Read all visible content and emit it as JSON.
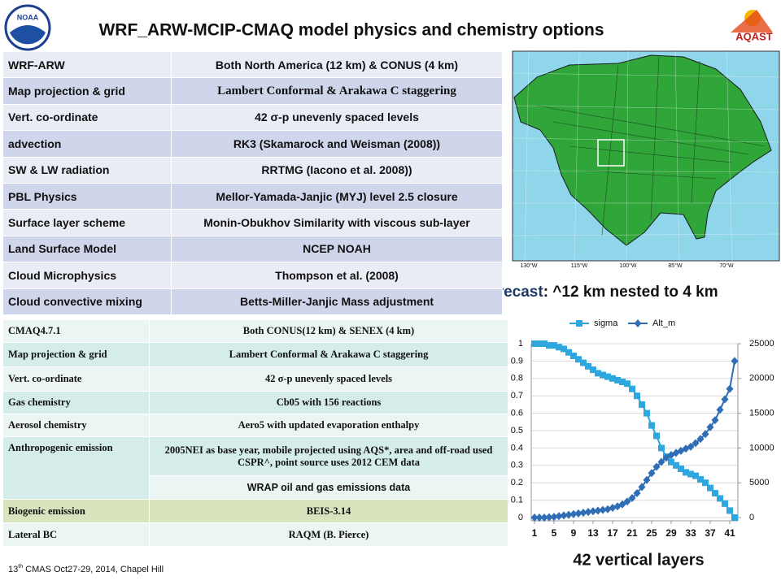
{
  "header": {
    "title": "WRF_ARW-MCIP-CMAQ model physics and chemistry options",
    "left_logo": "NOAA",
    "right_logo": "AQAST"
  },
  "wrf_table": {
    "header": [
      "WRF-ARW",
      "Both North America (12 km) & CONUS (4 km)"
    ],
    "rows": [
      [
        "Map projection & grid",
        "Lambert Conformal & Arakawa C staggering"
      ],
      [
        "Vert. co-ordinate",
        "42 σ-p unevenly spaced levels"
      ],
      [
        "advection",
        "RK3 (Skamarock and Weisman (2008))"
      ],
      [
        "SW & LW radiation",
        "RRTMG (Iacono et al. 2008))"
      ],
      [
        "PBL Physics",
        "Mellor-Yamada-Janjic (MYJ) level 2.5 closure"
      ],
      [
        "Surface layer scheme",
        "Monin-Obukhov Similarity with viscous sub-layer"
      ],
      [
        "Land Surface Model",
        "NCEP NOAH"
      ],
      [
        "Cloud Microphysics",
        "Thompson et al. (2008)"
      ],
      [
        "Cloud convective mixing",
        "Betts-Miller-Janjic Mass adjustment"
      ]
    ]
  },
  "cmaq_table": {
    "header": [
      "CMAQ4.7.1",
      "Both CONUS(12 km) & SENEX (4 km)"
    ],
    "rows": [
      [
        "Map projection & grid",
        "Lambert Conformal & Arakawa C staggering"
      ],
      [
        "Vert. co-ordinate",
        "42 σ-p unevenly spaced levels"
      ],
      [
        "Gas chemistry",
        "Cb05 with 156 reactions"
      ],
      [
        "Aerosol chemistry",
        "Aero5 with updated evaporation enthalpy"
      ],
      [
        "Anthropogenic emission",
        "2005NEI as base year, mobile projected using AQS*, area and off-road used CSPR^, point source uses 2012 CEM data",
        "WRAP oil and gas emissions data"
      ],
      [
        "Biogenic emission",
        "BEIS-3.14"
      ],
      [
        "Lateral BC",
        "RAQM (B. Pierce)"
      ]
    ]
  },
  "map": {
    "lon_labels": [
      "130°W",
      "115°W",
      "100°W",
      "85°W",
      "70°W"
    ],
    "caption_bold": "AQ forecast",
    "caption_rest": ": ^12 km nested to 4 km"
  },
  "chart_data": {
    "type": "line",
    "x": [
      1,
      2,
      3,
      4,
      5,
      6,
      7,
      8,
      9,
      10,
      11,
      12,
      13,
      14,
      15,
      16,
      17,
      18,
      19,
      20,
      21,
      22,
      23,
      24,
      25,
      26,
      27,
      28,
      29,
      30,
      31,
      32,
      33,
      34,
      35,
      36,
      37,
      38,
      39,
      40,
      41,
      42
    ],
    "xlim": [
      1,
      42
    ],
    "xticks": [
      1,
      5,
      9,
      13,
      17,
      21,
      25,
      29,
      33,
      37,
      41
    ],
    "ylim": [
      0,
      1
    ],
    "yticks": [
      0,
      0.1,
      0.2,
      0.3,
      0.4,
      0.5,
      0.6,
      0.7,
      0.8,
      0.9,
      1
    ],
    "y2lim": [
      0,
      25000
    ],
    "y2ticks": [
      0,
      5000,
      10000,
      15000,
      20000,
      25000
    ],
    "grid": true,
    "legend": "top",
    "series": [
      {
        "name": "sigma",
        "color": "#2ea6de",
        "marker": "square",
        "values": [
          1,
          1,
          1,
          0.99,
          0.99,
          0.98,
          0.97,
          0.95,
          0.93,
          0.91,
          0.89,
          0.87,
          0.85,
          0.83,
          0.82,
          0.81,
          0.8,
          0.79,
          0.78,
          0.77,
          0.74,
          0.7,
          0.65,
          0.6,
          0.53,
          0.47,
          0.4,
          0.35,
          0.32,
          0.3,
          0.28,
          0.26,
          0.25,
          0.24,
          0.22,
          0.2,
          0.17,
          0.14,
          0.11,
          0.08,
          0.04,
          0
        ]
      },
      {
        "name": "Alt_m",
        "color": "#2f6db5",
        "marker": "diamond",
        "axis": "y2",
        "values": [
          0,
          0,
          0,
          50,
          100,
          200,
          300,
          400,
          500,
          600,
          700,
          800,
          900,
          1000,
          1100,
          1200,
          1400,
          1600,
          1900,
          2300,
          2800,
          3500,
          4400,
          5400,
          6400,
          7300,
          8000,
          8600,
          9000,
          9300,
          9600,
          9900,
          10200,
          10700,
          11300,
          12000,
          13000,
          14000,
          15500,
          17000,
          18500,
          22500
        ]
      }
    ],
    "caption": "42 vertical layers"
  },
  "footer": {
    "number": "13",
    "sup": "th",
    "rest": " CMAS Oct27-29, 2014, Chapel Hill"
  }
}
